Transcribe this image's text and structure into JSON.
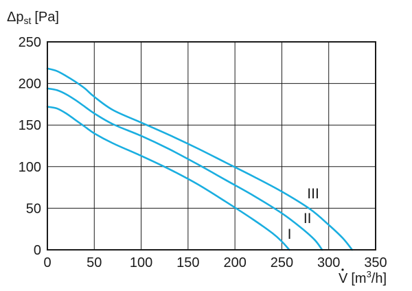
{
  "chart_data": {
    "type": "line",
    "title": "",
    "ylabel": {
      "symbol": "Δp",
      "subscript": "st",
      "unit": "[Pa]"
    },
    "xlabel": {
      "symbol": "V",
      "unit": "[m",
      "sup": "3",
      "unit_end": "/h]"
    },
    "xlim": [
      0,
      350
    ],
    "ylim": [
      0,
      250
    ],
    "x_ticks": [
      0,
      50,
      100,
      150,
      200,
      250,
      300,
      350
    ],
    "y_ticks": [
      0,
      50,
      100,
      150,
      200,
      250
    ],
    "grid": true,
    "line_color": "#1aaee0",
    "series": [
      {
        "name": "I",
        "x": [
          0,
          10,
          20,
          30,
          40,
          50,
          70,
          100,
          130,
          160,
          190,
          220,
          240,
          250,
          258
        ],
        "y": [
          172,
          170,
          164,
          156,
          148,
          140,
          128,
          113,
          97,
          79,
          58,
          36,
          20,
          10,
          0
        ]
      },
      {
        "name": "II",
        "x": [
          0,
          10,
          20,
          30,
          40,
          50,
          70,
          100,
          130,
          160,
          190,
          220,
          250,
          270,
          285,
          293
        ],
        "y": [
          194,
          192,
          187,
          180,
          172,
          164,
          151,
          137,
          121,
          103,
          84,
          65,
          44,
          27,
          12,
          0
        ]
      },
      {
        "name": "III",
        "x": [
          0,
          10,
          20,
          30,
          40,
          50,
          70,
          100,
          130,
          160,
          190,
          220,
          250,
          280,
          300,
          315,
          325
        ],
        "y": [
          218,
          215,
          209,
          202,
          194,
          184,
          168,
          153,
          138,
          122,
          105,
          88,
          70,
          49,
          30,
          14,
          0
        ]
      }
    ],
    "curve_labels": [
      {
        "text": "III",
        "x": 277,
        "y": 62
      },
      {
        "text": "II",
        "x": 273,
        "y": 32
      },
      {
        "text": "I",
        "x": 256,
        "y": 13
      }
    ]
  }
}
